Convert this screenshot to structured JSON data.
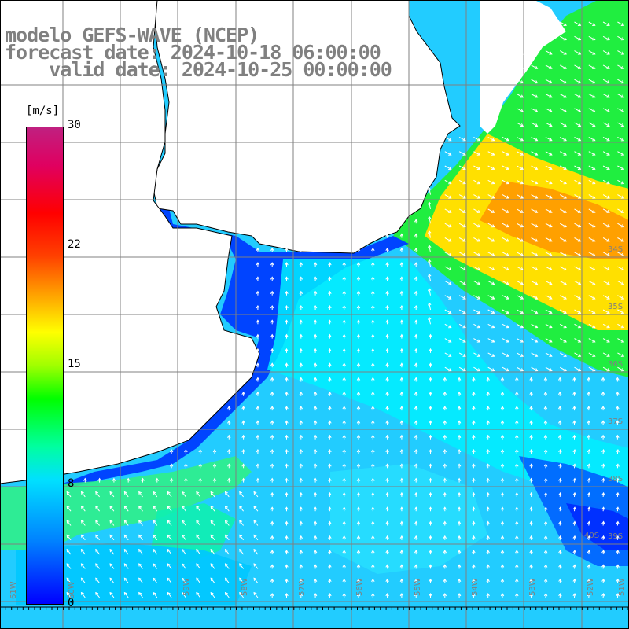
{
  "title": {
    "line1": "modelo GEFS-WAVE (NCEP)",
    "line2": "forecast date: 2024-10-18 06:00:00",
    "line3": "    valid date: 2024-10-25 00:00:00"
  },
  "colorbar": {
    "unit": "[m/s]",
    "min": 0,
    "max": 30,
    "ticks": [
      "30",
      "22",
      "15",
      "8",
      "0"
    ]
  },
  "lat_labels": [
    "34S",
    "35S",
    "36S",
    "37S",
    "38S",
    "39S",
    "40S"
  ],
  "lon_labels": [
    "61W",
    "60W",
    "59W",
    "58W",
    "57W",
    "56W",
    "55W",
    "54W",
    "53W",
    "52W",
    "51W"
  ],
  "colors": {
    "land": "#ffffff",
    "coast": "#000000",
    "grid": "#808080",
    "vector": "#ffffff"
  }
}
